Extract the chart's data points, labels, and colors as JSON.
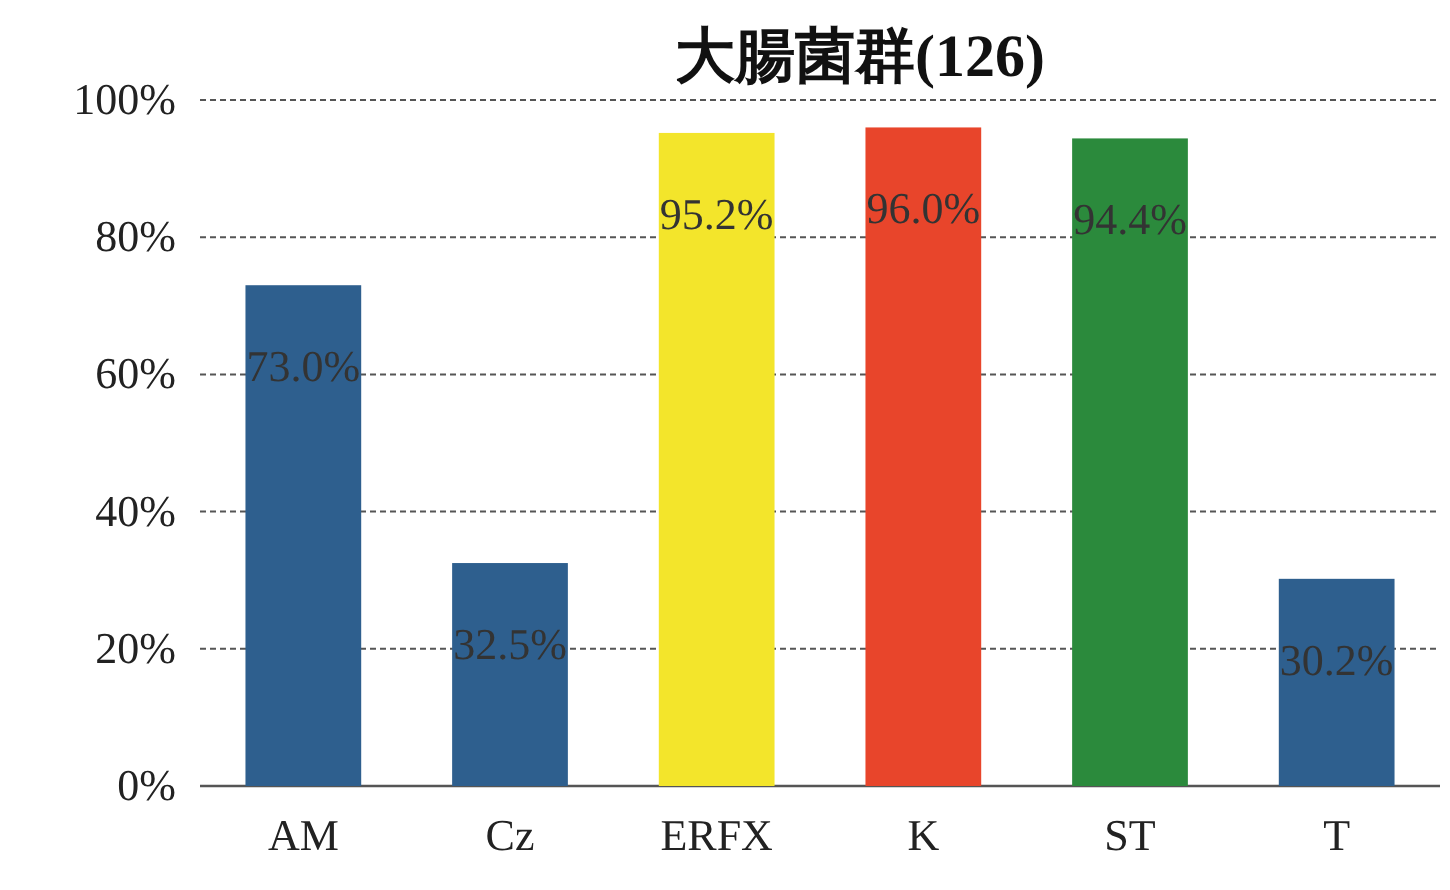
{
  "chart_data": {
    "type": "bar",
    "title": "大腸菌群(126)",
    "categories": [
      "AM",
      "Cz",
      "ERFX",
      "K",
      "ST",
      "T"
    ],
    "values": [
      73.0,
      32.5,
      95.2,
      96.0,
      94.4,
      30.2
    ],
    "colors": [
      "#2e5f8e",
      "#2e5f8e",
      "#f3e52b",
      "#e8452b",
      "#2b8a3c",
      "#2e5f8e"
    ],
    "value_labels": [
      "73.0%",
      "32.5%",
      "95.2%",
      "96.0%",
      "94.4%",
      "30.2%"
    ],
    "ylim": [
      0,
      100
    ],
    "yticks": [
      {
        "value": 0,
        "label": "0%"
      },
      {
        "value": 20,
        "label": "20%"
      },
      {
        "value": 40,
        "label": "40%"
      },
      {
        "value": 60,
        "label": "60%"
      },
      {
        "value": 80,
        "label": "80%"
      },
      {
        "value": 100,
        "label": "100%"
      }
    ],
    "grid": "y"
  }
}
